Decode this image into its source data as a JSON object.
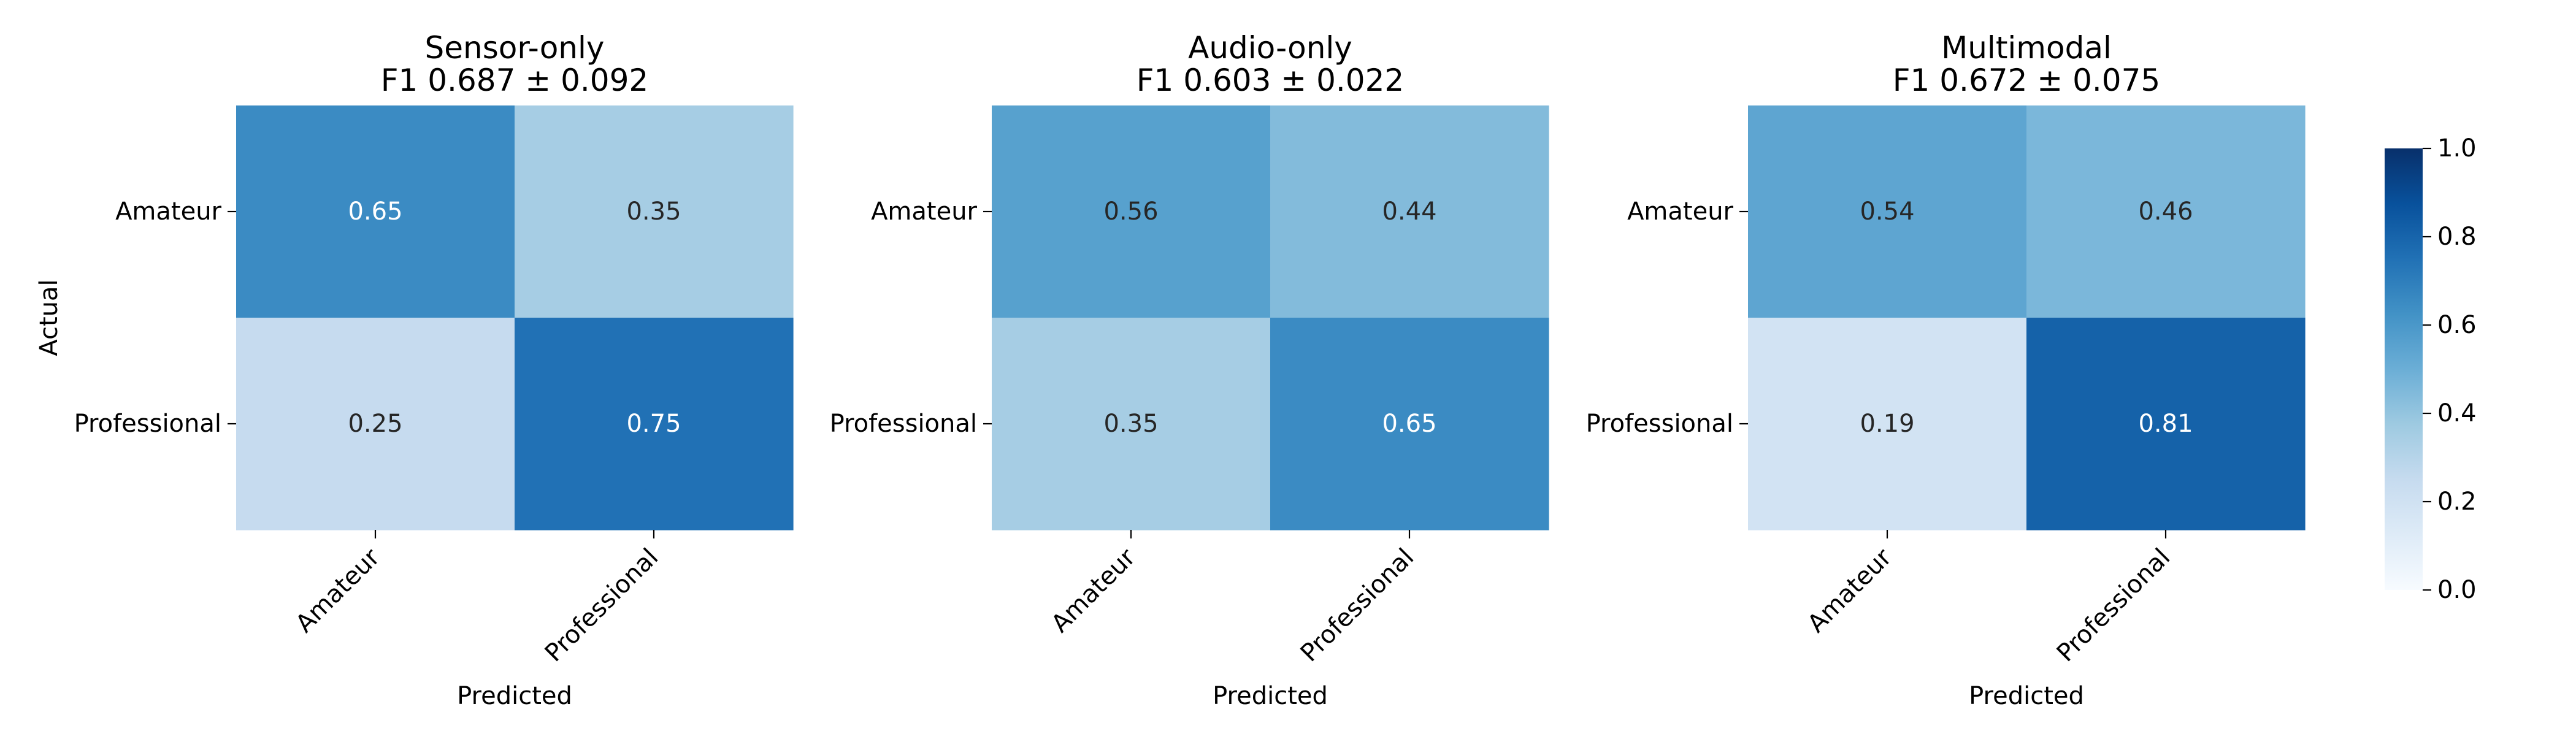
{
  "chart_data": [
    {
      "type": "heatmap",
      "title": "Sensor-only",
      "subtitle": "F1 0.687 ± 0.092",
      "xlabel": "Predicted",
      "ylabel": "Actual",
      "x_categories": [
        "Amateur",
        "Professional"
      ],
      "y_categories": [
        "Amateur",
        "Professional"
      ],
      "values": [
        [
          0.65,
          0.35
        ],
        [
          0.25,
          0.75
        ]
      ],
      "value_labels": [
        [
          "0.65",
          "0.35"
        ],
        [
          "0.25",
          "0.75"
        ]
      ]
    },
    {
      "type": "heatmap",
      "title": "Audio-only",
      "subtitle": "F1 0.603 ± 0.022",
      "xlabel": "Predicted",
      "ylabel": "",
      "x_categories": [
        "Amateur",
        "Professional"
      ],
      "y_categories": [
        "Amateur",
        "Professional"
      ],
      "values": [
        [
          0.56,
          0.44
        ],
        [
          0.35,
          0.65
        ]
      ],
      "value_labels": [
        [
          "0.56",
          "0.44"
        ],
        [
          "0.35",
          "0.65"
        ]
      ]
    },
    {
      "type": "heatmap",
      "title": "Multimodal",
      "subtitle": "F1 0.672 ± 0.075",
      "xlabel": "Predicted",
      "ylabel": "",
      "x_categories": [
        "Amateur",
        "Professional"
      ],
      "y_categories": [
        "Amateur",
        "Professional"
      ],
      "values": [
        [
          0.54,
          0.46
        ],
        [
          0.19,
          0.81
        ]
      ],
      "value_labels": [
        [
          "0.54",
          "0.46"
        ],
        [
          "0.19",
          "0.81"
        ]
      ]
    }
  ],
  "colorbar": {
    "colormap": "Blues",
    "range": [
      0.0,
      1.0
    ],
    "ticks": [
      "0.0",
      "0.2",
      "0.4",
      "0.6",
      "0.8",
      "1.0"
    ]
  }
}
